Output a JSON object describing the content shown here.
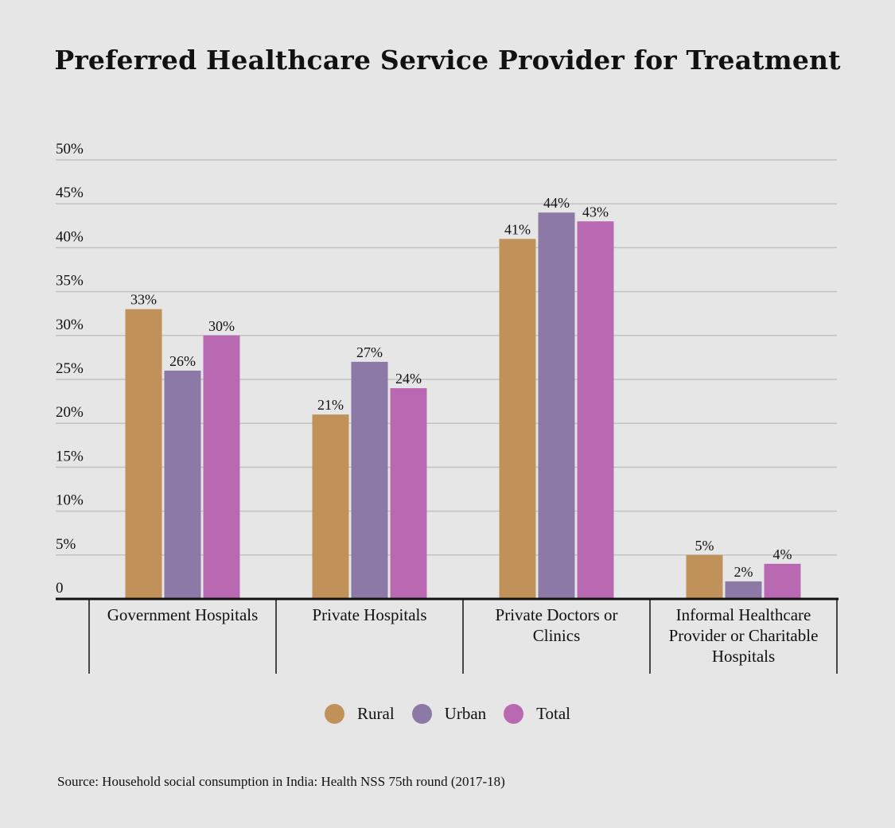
{
  "title": "Preferred Healthcare Service Provider for Treatment",
  "source": "Source: Household social consumption in India: Health NSS 75th round (2017-18)",
  "colors": {
    "rural": "#c09158",
    "urban": "#8c79a5",
    "total": "#b869b1",
    "grid": "#c2c2c2",
    "axis": "#111111",
    "background": "#e6e6e6"
  },
  "chart_data": {
    "type": "bar",
    "title": "Preferred Healthcare Service Provider for Treatment",
    "xlabel": "",
    "ylabel": "",
    "ylim": [
      0,
      50
    ],
    "yticks": [
      0,
      5,
      10,
      15,
      20,
      25,
      30,
      35,
      40,
      45,
      50
    ],
    "ytick_labels": [
      "0",
      "5%",
      "10%",
      "15%",
      "20%",
      "25%",
      "30%",
      "35%",
      "40%",
      "45%",
      "50%"
    ],
    "grid": true,
    "legend_position": "bottom-center",
    "categories": [
      [
        "Government Hospitals"
      ],
      [
        "Private Hospitals"
      ],
      [
        "Private Doctors or",
        "Clinics"
      ],
      [
        "Informal Healthcare",
        "Provider or Charitable",
        "Hospitals"
      ]
    ],
    "series": [
      {
        "name": "Rural",
        "values": [
          33,
          21,
          41,
          5
        ],
        "labels": [
          "33%",
          "21%",
          "41%",
          "5%"
        ]
      },
      {
        "name": "Urban",
        "values": [
          26,
          27,
          44,
          2
        ],
        "labels": [
          "26%",
          "27%",
          "44%",
          "2%"
        ]
      },
      {
        "name": "Total",
        "values": [
          30,
          24,
          43,
          4
        ],
        "labels": [
          "30%",
          "24%",
          "43%",
          "4%"
        ]
      }
    ]
  }
}
